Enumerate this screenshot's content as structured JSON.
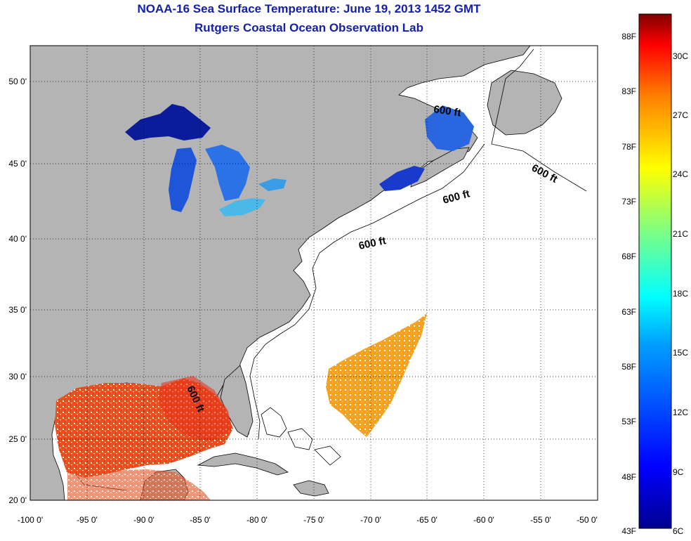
{
  "title": {
    "line1": "NOAA-16 Sea Surface Temperature:  June 19, 2013 1452 GMT",
    "line2": "Rutgers Coastal Ocean Observation Lab"
  },
  "map": {
    "lat_labels": [
      "50 0'",
      "45 0'",
      "40 0'",
      "35 0'",
      "30 0'",
      "25 0'",
      "20 0'"
    ],
    "lon_labels": [
      "-100 0'",
      "-95 0'",
      "-90 0'",
      "-85 0'",
      "-80 0'",
      "-75 0'",
      "-70 0'",
      "-65 0'",
      "-60 0'",
      "-55 0'",
      "-50 0'"
    ],
    "contour_label": "600 ft",
    "colors": {
      "land": "#b4b4b4",
      "ocean": "#ffffff",
      "grid": "#000000"
    }
  },
  "colorbar": {
    "fahrenheit_labels": [
      "88F",
      "83F",
      "78F",
      "73F",
      "68F",
      "63F",
      "58F",
      "53F",
      "48F",
      "43F"
    ],
    "celsius_labels": [
      "30C",
      "27C",
      "24C",
      "21C",
      "18C",
      "15C",
      "12C",
      "9C",
      "6C"
    ],
    "colors": [
      "#7f0000",
      "#ff0000",
      "#ff8000",
      "#ffff00",
      "#80ff80",
      "#00ffff",
      "#0080ff",
      "#0000ff",
      "#00008f"
    ]
  }
}
